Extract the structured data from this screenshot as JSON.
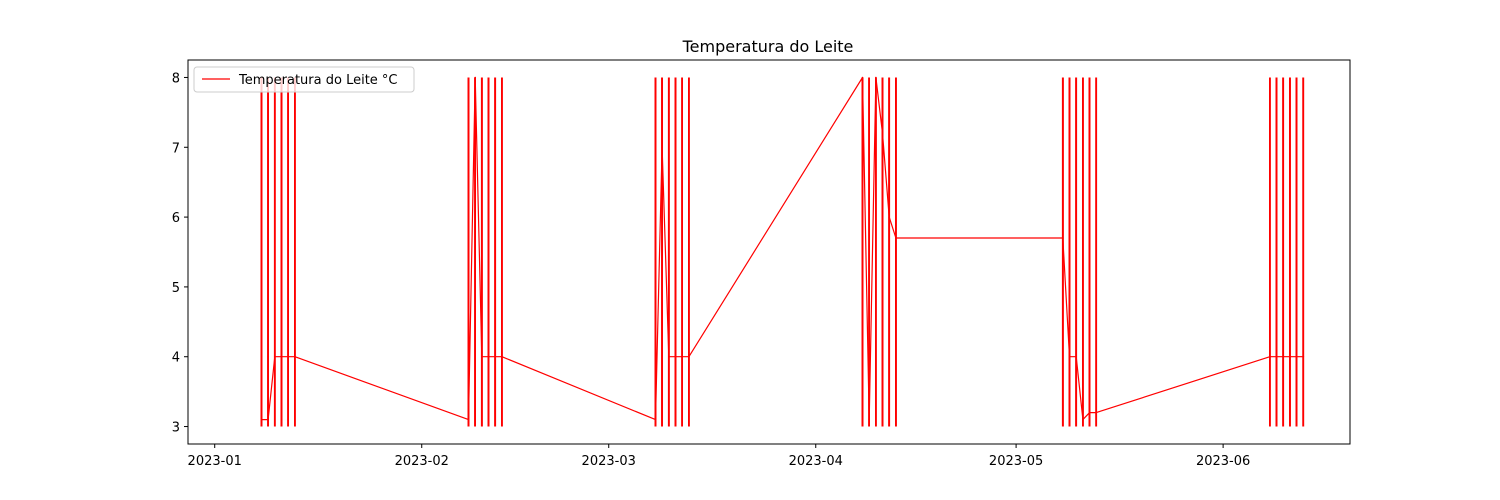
{
  "chart_data": {
    "type": "line",
    "title": "Temperatura do Leite",
    "xlabel": "",
    "ylabel": "",
    "x_ticks": [
      "2023-01",
      "2023-02",
      "2023-03",
      "2023-04",
      "2023-05",
      "2023-06"
    ],
    "y_ticks": [
      "3",
      "4",
      "5",
      "6",
      "7",
      "8"
    ],
    "xlim": [
      "2022-12-28",
      "2023-06-20"
    ],
    "ylim": [
      2.75,
      8.25
    ],
    "grid": false,
    "legend_position": "upper-left",
    "series": [
      {
        "name": "Temperatura do Leite °C",
        "color": "#ff0000",
        "x": [
          "2023-01-08",
          "2023-01-09",
          "2023-01-10",
          "2023-01-11",
          "2023-01-12",
          "2023-01-13",
          "2023-02-08",
          "2023-02-09",
          "2023-02-10",
          "2023-02-11",
          "2023-02-12",
          "2023-02-13",
          "2023-03-08",
          "2023-03-09",
          "2023-03-10",
          "2023-03-11",
          "2023-03-12",
          "2023-03-13",
          "2023-04-08",
          "2023-04-09",
          "2023-04-10",
          "2023-04-11",
          "2023-04-12",
          "2023-04-13",
          "2023-05-08",
          "2023-05-09",
          "2023-05-10",
          "2023-05-11",
          "2023-05-12",
          "2023-05-13",
          "2023-06-08",
          "2023-06-09",
          "2023-06-10",
          "2023-06-11",
          "2023-06-12",
          "2023-06-13"
        ],
        "y": [
          3.1,
          3.1,
          4.0,
          4.0,
          4.0,
          4.0,
          3.1,
          8.0,
          4.0,
          4.0,
          4.0,
          4.0,
          3.1,
          7.0,
          4.0,
          4.0,
          4.0,
          4.0,
          8.0,
          3.1,
          8.0,
          7.2,
          6.0,
          5.7,
          5.7,
          4.0,
          4.0,
          3.1,
          3.2,
          3.2,
          4.0,
          4.0,
          4.0,
          4.0,
          4.0,
          4.0
        ]
      }
    ]
  }
}
